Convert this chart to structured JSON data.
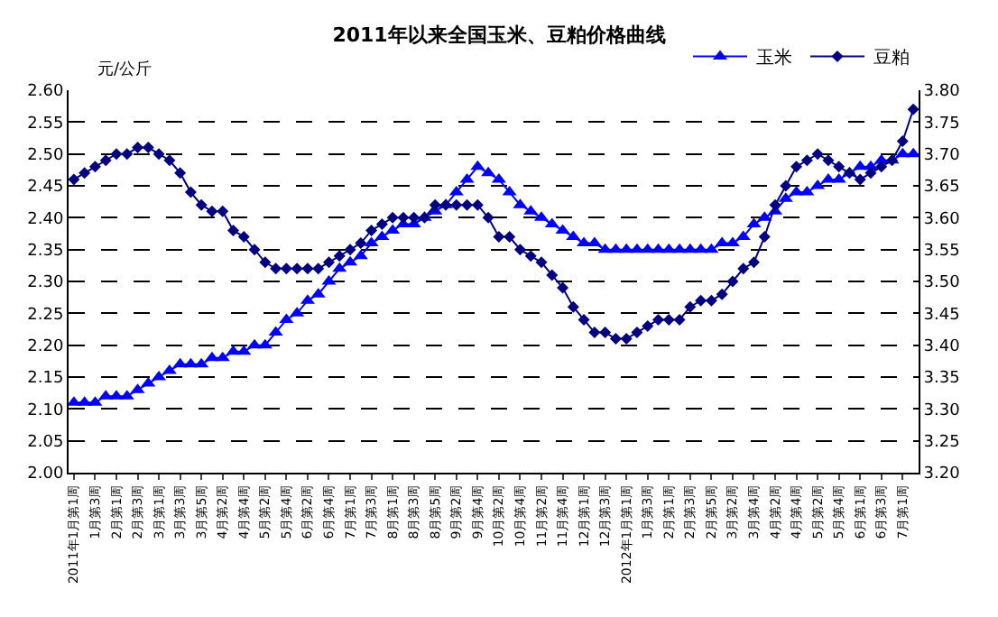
{
  "chart_data": {
    "type": "line",
    "title": "2011年以来全国玉米、豆粕价格曲线",
    "ylabel": "元/公斤",
    "categories": [
      "2011年1月第1周",
      null,
      "1月第3周",
      null,
      "2月第1周",
      null,
      "2月第3周",
      null,
      "3月第1周",
      null,
      "3月第3周",
      null,
      "3月第5周",
      null,
      "4月第2周",
      null,
      "4月第4周",
      null,
      "5月第2周",
      null,
      "5月第4周",
      null,
      "6月第2周",
      null,
      "6月第4周",
      null,
      "7月第1周",
      null,
      "7月第3周",
      null,
      "8月第1周",
      null,
      "8月第3周",
      null,
      "8月第5周",
      null,
      "9月第2周",
      null,
      "9月第4周",
      null,
      "10月第2周",
      null,
      "10月第4周",
      null,
      "11月第2周",
      null,
      "11月第4周",
      null,
      "12月第1周",
      null,
      "12月第3周",
      null,
      "2012年1月第1周",
      null,
      "1月第3周",
      null,
      "2月第1周",
      null,
      "2月第3周",
      null,
      "2月第5周",
      null,
      "3月第2周",
      null,
      "3月第4周",
      null,
      "4月第2周",
      null,
      "4月第4周",
      null,
      "5月第2周",
      null,
      "5月第4周",
      null,
      "6月第1周",
      null,
      "6月第3周",
      null,
      "7月第1周",
      null
    ],
    "series": [
      {
        "name": "玉米",
        "color": "#0000ff",
        "marker": "triangle",
        "values": [
          2.11,
          2.11,
          2.11,
          2.12,
          2.12,
          2.12,
          2.13,
          2.14,
          2.15,
          2.16,
          2.17,
          2.17,
          2.17,
          2.18,
          2.18,
          2.19,
          2.19,
          2.2,
          2.2,
          2.22,
          2.24,
          2.25,
          2.27,
          2.28,
          2.3,
          2.32,
          2.33,
          2.34,
          2.36,
          2.37,
          2.38,
          2.39,
          2.39,
          2.4,
          2.41,
          2.42,
          2.44,
          2.46,
          2.48,
          2.47,
          2.46,
          2.44,
          2.42,
          2.41,
          2.4,
          2.39,
          2.38,
          2.37,
          2.36,
          2.36,
          2.35,
          2.35,
          2.35,
          2.35,
          2.35,
          2.35,
          2.35,
          2.35,
          2.35,
          2.35,
          2.35,
          2.36,
          2.36,
          2.37,
          2.39,
          2.4,
          2.41,
          2.43,
          2.44,
          2.44,
          2.45,
          2.46,
          2.46,
          2.47,
          2.48,
          2.48,
          2.49,
          2.49,
          2.5,
          2.5
        ]
      },
      {
        "name": "豆粕",
        "color": "#000080",
        "marker": "diamond",
        "axis": "y2",
        "values": [
          3.66,
          3.67,
          3.68,
          3.69,
          3.7,
          3.7,
          3.71,
          3.71,
          3.7,
          3.69,
          3.67,
          3.64,
          3.62,
          3.61,
          3.61,
          3.58,
          3.57,
          3.55,
          3.53,
          3.52,
          3.52,
          3.52,
          3.52,
          3.52,
          3.53,
          3.54,
          3.55,
          3.56,
          3.58,
          3.59,
          3.6,
          3.6,
          3.6,
          3.6,
          3.62,
          3.62,
          3.62,
          3.62,
          3.62,
          3.6,
          3.57,
          3.57,
          3.55,
          3.54,
          3.53,
          3.51,
          3.49,
          3.46,
          3.44,
          3.42,
          3.42,
          3.41,
          3.41,
          3.42,
          3.43,
          3.44,
          3.44,
          3.44,
          3.46,
          3.47,
          3.47,
          3.48,
          3.5,
          3.52,
          3.53,
          3.57,
          3.62,
          3.65,
          3.68,
          3.69,
          3.7,
          3.69,
          3.68,
          3.67,
          3.66,
          3.67,
          3.68,
          3.69,
          3.72,
          3.77
        ]
      }
    ],
    "ylim": [
      2.0,
      2.6
    ],
    "yticks": [
      {
        "value": 2.0,
        "label": "2.00"
      },
      {
        "value": 2.05,
        "label": "2.05"
      },
      {
        "value": 2.1,
        "label": "2.10"
      },
      {
        "value": 2.15,
        "label": "2.15"
      },
      {
        "value": 2.2,
        "label": "2.20"
      },
      {
        "value": 2.25,
        "label": "2.25"
      },
      {
        "value": 2.3,
        "label": "2.30"
      },
      {
        "value": 2.35,
        "label": "2.35"
      },
      {
        "value": 2.4,
        "label": "2.40"
      },
      {
        "value": 2.45,
        "label": "2.45"
      },
      {
        "value": 2.5,
        "label": "2.50"
      },
      {
        "value": 2.55,
        "label": "2.55"
      },
      {
        "value": 2.6,
        "label": "2.60"
      }
    ],
    "y2lim": [
      3.2,
      3.8
    ],
    "y2ticks": [
      {
        "value": 3.2,
        "label": "3.20"
      },
      {
        "value": 3.25,
        "label": "3.25"
      },
      {
        "value": 3.3,
        "label": "3.30"
      },
      {
        "value": 3.35,
        "label": "3.35"
      },
      {
        "value": 3.4,
        "label": "3.40"
      },
      {
        "value": 3.45,
        "label": "3.45"
      },
      {
        "value": 3.5,
        "label": "3.50"
      },
      {
        "value": 3.55,
        "label": "3.55"
      },
      {
        "value": 3.6,
        "label": "3.60"
      },
      {
        "value": 3.65,
        "label": "3.65"
      },
      {
        "value": 3.7,
        "label": "3.70"
      },
      {
        "value": 3.75,
        "label": "3.75"
      },
      {
        "value": 3.8,
        "label": "3.80"
      }
    ],
    "grid": "y",
    "legend": "top right",
    "line_style": "solid"
  }
}
